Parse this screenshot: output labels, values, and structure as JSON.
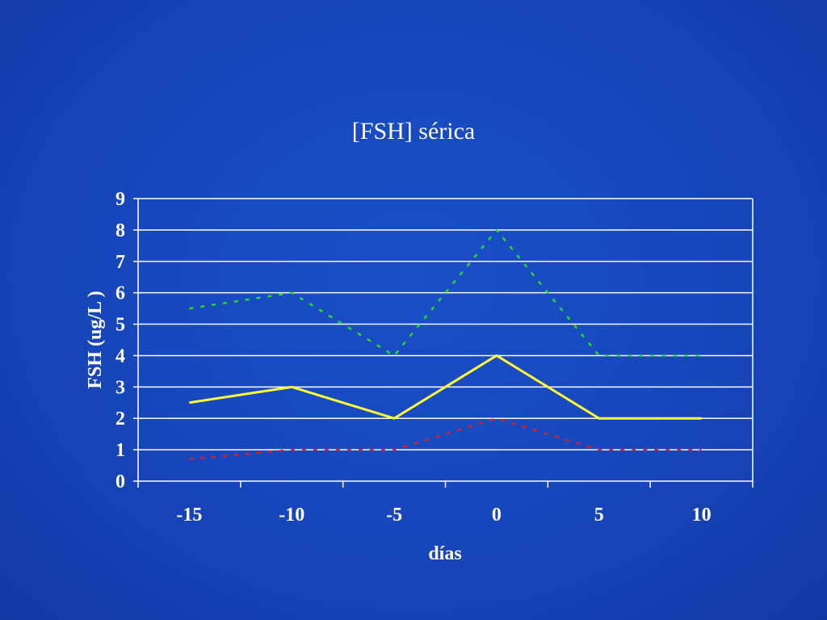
{
  "chart_data": {
    "type": "line",
    "title": "[FSH] sérica",
    "xlabel": "días",
    "ylabel": "FSH (ug/L )",
    "x": [
      -15,
      -10,
      -5,
      0,
      5,
      10
    ],
    "x_tick_labels": [
      "-15",
      "-10",
      "-5",
      "0",
      "5",
      "10"
    ],
    "y_tick_labels": [
      "0",
      "1",
      "2",
      "3",
      "4",
      "5",
      "6",
      "7",
      "8",
      "9"
    ],
    "ylim": [
      0,
      9
    ],
    "grid": true,
    "legend": "none",
    "series": [
      {
        "values": [
          5.5,
          6,
          4,
          8,
          4,
          4
        ],
        "color": "#22dd22",
        "style": "dotted"
      },
      {
        "values": [
          2.5,
          3,
          2,
          4,
          2,
          2
        ],
        "color": "#ffff33",
        "style": "solid"
      },
      {
        "values": [
          0.7,
          1,
          1,
          2,
          1,
          1
        ],
        "color": "#dd2222",
        "style": "dotted"
      }
    ]
  }
}
